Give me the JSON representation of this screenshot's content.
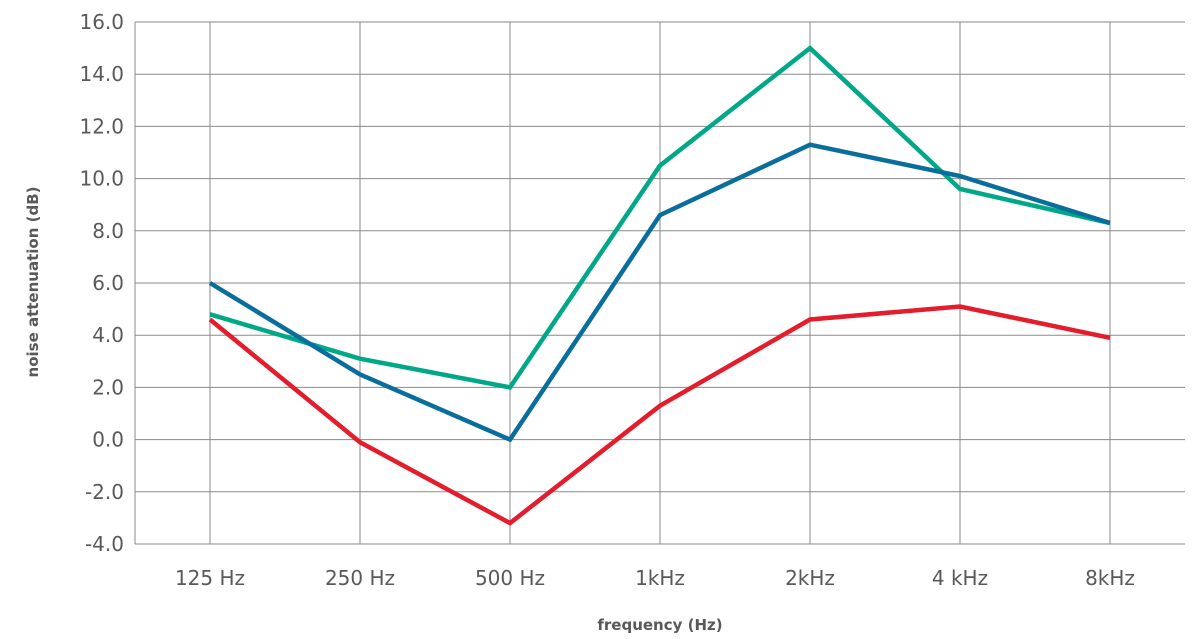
{
  "chart_data": {
    "type": "line",
    "title": "",
    "xlabel": "frequency (Hz)",
    "ylabel": "noise attenuation (dB)",
    "categories": [
      "125 Hz",
      "250 Hz",
      "500 Hz",
      "1kHz",
      "2kHz",
      "4 kHz",
      "8kHz"
    ],
    "ylim": [
      -4,
      16
    ],
    "yticks": [
      "-4.0",
      "-2.0",
      "0.0",
      "2.0",
      "4.0",
      "6.0",
      "8.0",
      "10.0",
      "12.0",
      "14.0",
      "16.0"
    ],
    "grid": true,
    "legend": "none",
    "series": [
      {
        "color": "#00a887",
        "values": [
          4.8,
          3.1,
          2.0,
          10.5,
          15.0,
          9.6,
          8.3
        ]
      },
      {
        "color": "#0a6e9c",
        "values": [
          6.0,
          2.5,
          0.0,
          8.6,
          11.3,
          10.1,
          8.3
        ]
      },
      {
        "color": "#e31d2b",
        "values": [
          4.6,
          -0.1,
          -3.2,
          1.3,
          4.6,
          5.1,
          3.9
        ]
      }
    ]
  }
}
